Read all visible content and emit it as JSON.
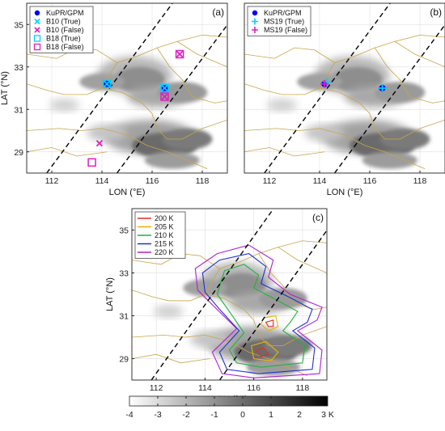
{
  "panels": [
    {
      "id": "a",
      "label": "(a)",
      "xlabel": "LON (°E)",
      "ylabel": "LAT (°N)",
      "x_ticks": [
        112,
        114,
        116,
        118
      ],
      "y_ticks": [
        29,
        31,
        33,
        35
      ],
      "xlim": [
        111,
        119
      ],
      "ylim": [
        28,
        36
      ],
      "legend": [
        {
          "text": "KuPR/GPM",
          "marker": "dot",
          "color": "#0000ff"
        },
        {
          "text": "B10 (True)",
          "marker": "x",
          "color": "#00d0ff"
        },
        {
          "text": "B10 (False)",
          "marker": "x",
          "color": "#e020c0"
        },
        {
          "text": "B18 (True)",
          "marker": "square",
          "color": "#00d0ff"
        },
        {
          "text": "B18 (False)",
          "marker": "square",
          "color": "#e020c0"
        }
      ]
    },
    {
      "id": "b",
      "label": "(b)",
      "xlabel": "LON (°E)",
      "ylabel": "",
      "x_ticks": [
        112,
        114,
        116,
        118
      ],
      "y_ticks": [],
      "xlim": [
        111,
        119
      ],
      "ylim": [
        28,
        36
      ],
      "legend": [
        {
          "text": "KuPR/GPM",
          "marker": "dot",
          "color": "#0000ff"
        },
        {
          "text": "MS19 (True)",
          "marker": "plus",
          "color": "#00d0ff"
        },
        {
          "text": "MS19 (False)",
          "marker": "plus",
          "color": "#e020c0"
        }
      ]
    },
    {
      "id": "c",
      "label": "(c)",
      "xlabel": "LON (°E)",
      "ylabel": "LAT (°N)",
      "x_ticks": [
        112,
        114,
        116,
        118
      ],
      "y_ticks": [
        29,
        31,
        33,
        35
      ],
      "xlim": [
        111,
        119
      ],
      "ylim": [
        28,
        36
      ],
      "legend": [
        {
          "text": "200 K",
          "color": "#e03020"
        },
        {
          "text": "205 K",
          "color": "#f0b000"
        },
        {
          "text": "210 K",
          "color": "#20b040"
        },
        {
          "text": "215 K",
          "color": "#2030d0"
        },
        {
          "text": "220 K",
          "color": "#b020d0"
        }
      ]
    }
  ],
  "colorbar": {
    "ticks": [
      "-4",
      "-3",
      "-2",
      "-1",
      "0",
      "1",
      "2",
      "3 K"
    ],
    "range": [
      -4,
      3
    ]
  },
  "chart_data": [
    {
      "type": "scatter",
      "panel": "a",
      "series": [
        {
          "name": "KuPR/GPM",
          "x": [
            114.2,
            116.5
          ],
          "y": [
            32.2,
            32.0
          ]
        },
        {
          "name": "B10 (True)",
          "x": [
            114.2,
            116.5
          ],
          "y": [
            32.2,
            32.0
          ]
        },
        {
          "name": "B10 (False)",
          "x": [
            113.9,
            116.5,
            117.1
          ],
          "y": [
            29.4,
            31.6,
            33.6
          ]
        },
        {
          "name": "B18 (True)",
          "x": [
            114.2,
            116.5
          ],
          "y": [
            32.2,
            32.0
          ]
        },
        {
          "name": "B18 (False)",
          "x": [
            113.6,
            116.5,
            117.1
          ],
          "y": [
            28.5,
            31.6,
            33.6
          ]
        }
      ],
      "xlim": [
        111,
        119
      ],
      "ylim": [
        28,
        36
      ]
    },
    {
      "type": "scatter",
      "panel": "b",
      "series": [
        {
          "name": "KuPR/GPM",
          "x": [
            114.2,
            116.5
          ],
          "y": [
            32.2,
            32.0
          ]
        },
        {
          "name": "MS19 (True)",
          "x": [
            114.3,
            116.5
          ],
          "y": [
            32.3,
            32.0
          ]
        },
        {
          "name": "MS19 (False)",
          "x": [
            114.2
          ],
          "y": [
            32.2
          ]
        }
      ],
      "xlim": [
        111,
        119
      ],
      "ylim": [
        28,
        36
      ]
    }
  ]
}
